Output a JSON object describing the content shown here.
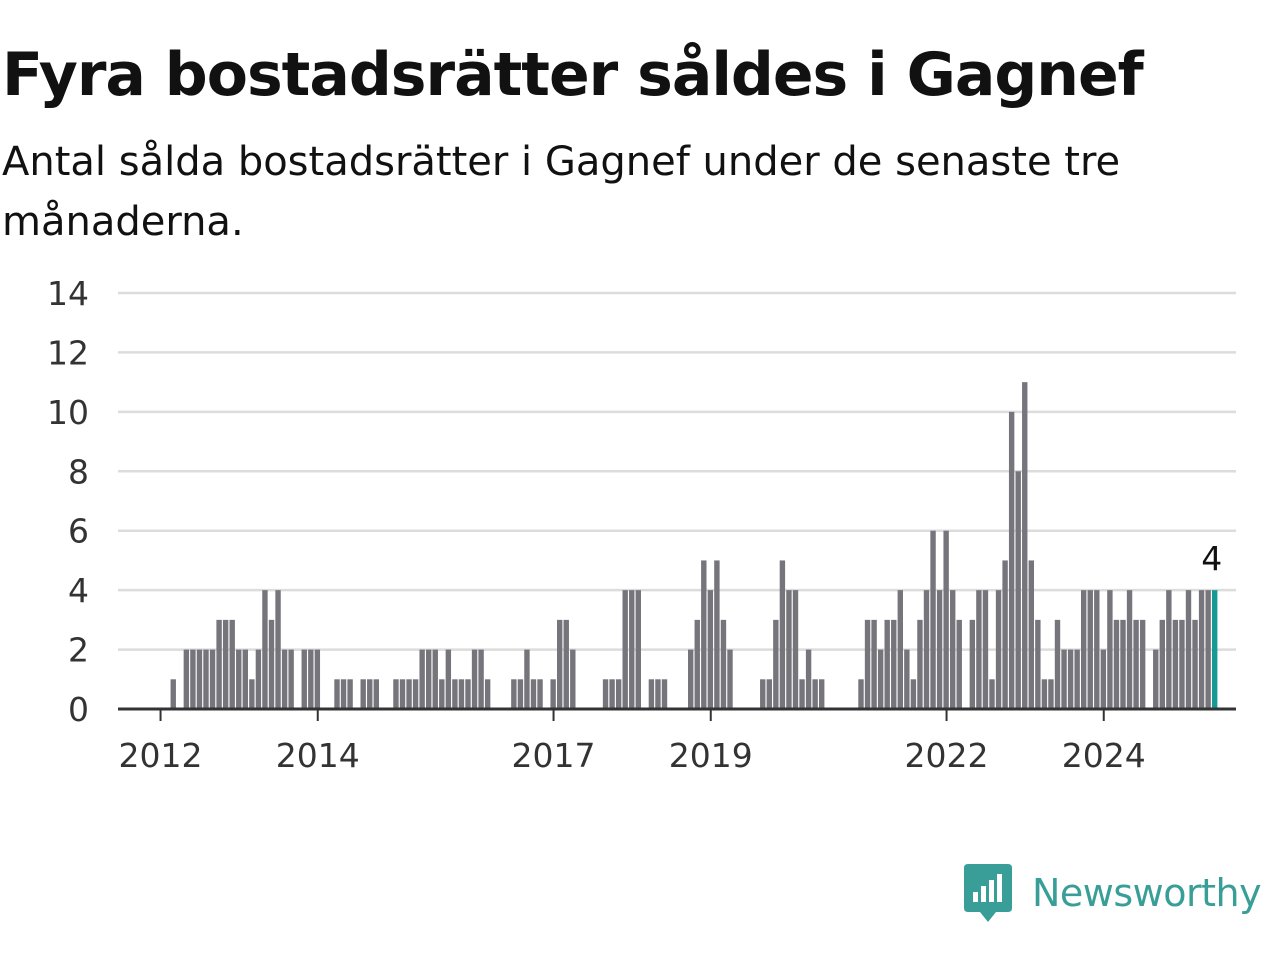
{
  "header": {
    "title": "Fyra bostadsrätter såldes i Gagnef",
    "subtitle": "Antal sålda bostadsrätter i Gagnef under de senaste tre månaderna."
  },
  "brand": {
    "name": "Newsworthy",
    "icon": "bar-chart-bubble-icon",
    "color": "#3a9e98"
  },
  "colors": {
    "bar": "#76757c",
    "highlight": "#169a96",
    "grid": "#dcdcdc",
    "axis": "#333333"
  },
  "chart_data": {
    "type": "bar",
    "title": "Fyra bostadsrätter såldes i Gagnef",
    "subtitle": "Antal sålda bostadsrätter i Gagnef under de senaste tre månaderna.",
    "x_unit": "month",
    "x_start": "2011-10",
    "ylim": [
      0,
      14
    ],
    "yticks": [
      0,
      2,
      4,
      6,
      8,
      10,
      12,
      14
    ],
    "xticks": [
      "2012",
      "2014",
      "2017",
      "2019",
      "2022",
      "2024"
    ],
    "grid": true,
    "legend": "none",
    "highlight_last": true,
    "last_label": "4",
    "values": [
      0,
      0,
      0,
      0,
      0,
      1,
      0,
      2,
      2,
      2,
      2,
      2,
      3,
      3,
      3,
      2,
      2,
      1,
      2,
      4,
      3,
      4,
      2,
      2,
      0,
      2,
      2,
      2,
      0,
      0,
      1,
      1,
      1,
      0,
      1,
      1,
      1,
      0,
      0,
      1,
      1,
      1,
      1,
      2,
      2,
      2,
      1,
      2,
      1,
      1,
      1,
      2,
      2,
      1,
      0,
      0,
      0,
      1,
      1,
      2,
      1,
      1,
      0,
      1,
      3,
      3,
      2,
      0,
      0,
      0,
      0,
      1,
      1,
      1,
      4,
      4,
      4,
      0,
      1,
      1,
      1,
      0,
      0,
      0,
      2,
      3,
      5,
      4,
      5,
      3,
      2,
      0,
      0,
      0,
      0,
      1,
      1,
      3,
      5,
      4,
      4,
      1,
      2,
      1,
      1,
      0,
      0,
      0,
      0,
      0,
      1,
      3,
      3,
      2,
      3,
      3,
      4,
      2,
      1,
      3,
      4,
      6,
      4,
      6,
      4,
      3,
      0,
      3,
      4,
      4,
      1,
      4,
      5,
      10,
      8,
      11,
      5,
      3,
      1,
      1,
      3,
      2,
      2,
      2,
      4,
      4,
      4,
      2,
      4,
      3,
      3,
      4,
      3,
      3,
      0,
      2,
      3,
      4,
      3,
      3,
      4,
      3,
      4,
      4,
      4
    ]
  }
}
